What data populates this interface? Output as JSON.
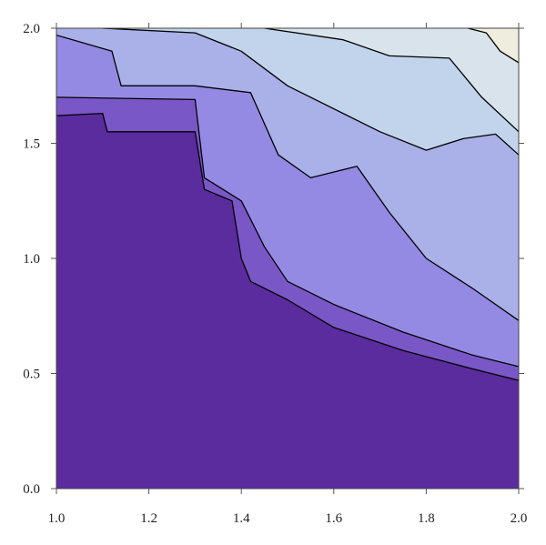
{
  "chart_data": {
    "type": "contour",
    "title": "",
    "xlabel": "",
    "ylabel": "",
    "xlim": [
      1.0,
      2.0
    ],
    "ylim": [
      0.0,
      2.0
    ],
    "x_ticks": [
      1.0,
      1.2,
      1.4,
      1.6,
      1.8,
      2.0
    ],
    "x_tick_labels": [
      "1.0",
      "1.2",
      "1.4",
      "1.6",
      "1.8",
      "2.0"
    ],
    "y_ticks": [
      0.0,
      0.5,
      1.0,
      1.5,
      2.0
    ],
    "y_tick_labels": [
      "0.0",
      "0.5",
      "1.0",
      "1.5",
      "2.0"
    ],
    "grid": false,
    "legend": "none",
    "colors": {
      "level_1": "#5A2C9E",
      "level_2": "#7A57C6",
      "level_3": "#948AE4",
      "level_4": "#AAB0E8",
      "level_5": "#C2D4EC",
      "level_6": "#D9E3EC",
      "level_7": "#EEEDDE"
    },
    "contours": [
      {
        "level": 1,
        "points": [
          [
            1.0,
            1.62
          ],
          [
            1.1,
            1.63
          ],
          [
            1.11,
            1.55
          ],
          [
            1.3,
            1.55
          ],
          [
            1.32,
            1.3
          ],
          [
            1.38,
            1.25
          ],
          [
            1.4,
            1.0
          ],
          [
            1.42,
            0.9
          ],
          [
            1.5,
            0.82
          ],
          [
            1.6,
            0.7
          ],
          [
            1.75,
            0.6
          ],
          [
            1.9,
            0.52
          ],
          [
            2.0,
            0.47
          ]
        ]
      },
      {
        "level": 2,
        "points": [
          [
            1.0,
            1.7
          ],
          [
            1.3,
            1.69
          ],
          [
            1.32,
            1.35
          ],
          [
            1.4,
            1.25
          ],
          [
            1.45,
            1.05
          ],
          [
            1.5,
            0.9
          ],
          [
            1.6,
            0.8
          ],
          [
            1.75,
            0.68
          ],
          [
            1.9,
            0.58
          ],
          [
            2.0,
            0.53
          ]
        ]
      },
      {
        "level": 3,
        "points": [
          [
            1.0,
            1.97
          ],
          [
            1.12,
            1.9
          ],
          [
            1.14,
            1.75
          ],
          [
            1.3,
            1.75
          ],
          [
            1.42,
            1.72
          ],
          [
            1.48,
            1.45
          ],
          [
            1.55,
            1.35
          ],
          [
            1.65,
            1.4
          ],
          [
            1.72,
            1.2
          ],
          [
            1.8,
            1.0
          ],
          [
            1.9,
            0.87
          ],
          [
            2.0,
            0.73
          ]
        ]
      },
      {
        "level": 4,
        "points": [
          [
            1.1,
            2.0
          ],
          [
            1.3,
            1.98
          ],
          [
            1.4,
            1.9
          ],
          [
            1.5,
            1.75
          ],
          [
            1.7,
            1.55
          ],
          [
            1.8,
            1.47
          ],
          [
            1.88,
            1.52
          ],
          [
            1.95,
            1.54
          ],
          [
            2.0,
            1.45
          ]
        ]
      },
      {
        "level": 5,
        "points": [
          [
            1.45,
            2.0
          ],
          [
            1.62,
            1.95
          ],
          [
            1.72,
            1.88
          ],
          [
            1.85,
            1.87
          ],
          [
            1.92,
            1.7
          ],
          [
            2.0,
            1.55
          ]
        ]
      },
      {
        "level": 6,
        "points": [
          [
            1.89,
            2.0
          ],
          [
            1.93,
            1.98
          ],
          [
            1.96,
            1.9
          ],
          [
            2.0,
            1.85
          ]
        ]
      }
    ]
  }
}
